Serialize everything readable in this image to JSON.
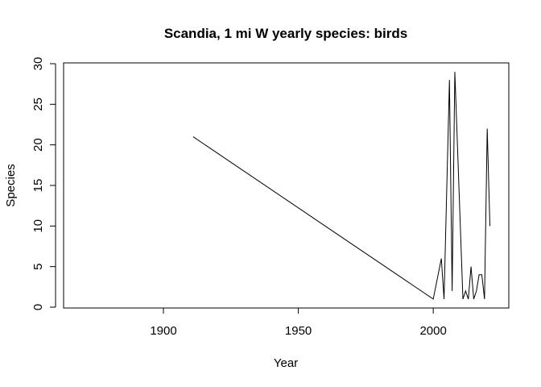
{
  "chart_data": {
    "type": "line",
    "title": "Scandia, 1 mi W yearly species: birds",
    "xlabel": "Year",
    "ylabel": "Species",
    "xlim": [
      1863,
      2028
    ],
    "ylim": [
      0,
      30
    ],
    "x_ticks": [
      1900,
      1950,
      2000
    ],
    "y_ticks": [
      0,
      5,
      10,
      15,
      20,
      25,
      30
    ],
    "grid": false,
    "series": [
      {
        "x": [
          1911,
          2000,
          2003,
          2004,
          2006,
          2007,
          2008,
          2011,
          2012,
          2013,
          2014,
          2015,
          2016,
          2017,
          2018,
          2019,
          2020,
          2021
        ],
        "y": [
          21,
          1,
          6,
          1,
          28,
          2,
          29,
          1,
          2,
          1,
          5,
          1,
          2,
          4,
          4,
          1,
          22,
          10
        ]
      }
    ]
  }
}
